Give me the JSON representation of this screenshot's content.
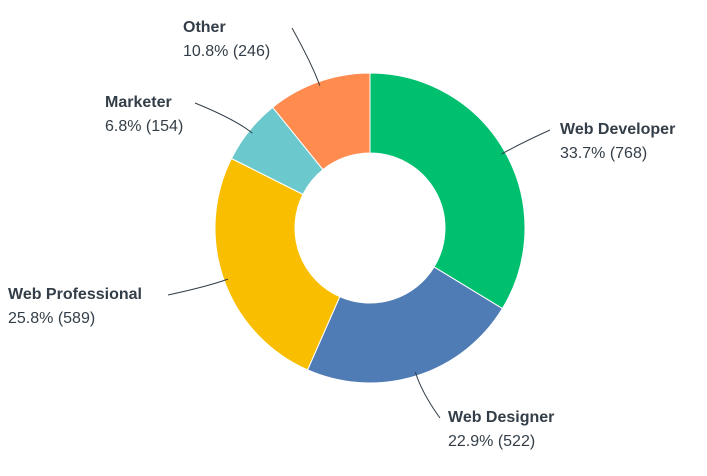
{
  "chart_data": {
    "type": "donut",
    "categories": [
      "Web Developer",
      "Web Designer",
      "Web Professional",
      "Marketer",
      "Other"
    ],
    "values": [
      33.7,
      22.9,
      25.8,
      6.8,
      10.8
    ],
    "counts": [
      768,
      522,
      589,
      154,
      246
    ],
    "value_labels": [
      "33.7% (768)",
      "22.9% (522)",
      "25.8% (589)",
      "6.8% (154)",
      "10.8% (246)"
    ],
    "colors": [
      "#00bf6f",
      "#507cb6",
      "#f9be00",
      "#6bc8cd",
      "#ff8b4f"
    ]
  }
}
